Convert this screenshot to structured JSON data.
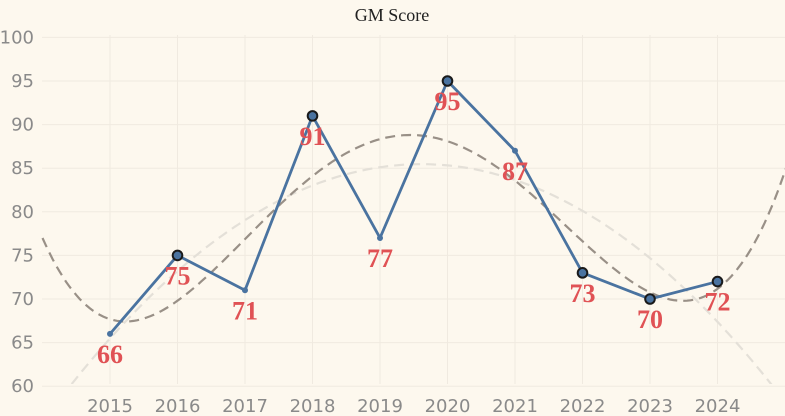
{
  "chart_data": {
    "type": "line",
    "title": "GM Score",
    "xlabel": "",
    "ylabel": "",
    "x": [
      "2015",
      "2016",
      "2017",
      "2018",
      "2019",
      "2020",
      "2021",
      "2022",
      "2023",
      "2024"
    ],
    "series": [
      {
        "values": [
          66,
          75,
          71,
          91,
          77,
          95,
          87,
          73,
          70,
          72
        ],
        "data_labels": [
          "66",
          "75",
          "71",
          "91",
          "77",
          "95",
          "87",
          "73",
          "70",
          "72"
        ],
        "highlighted": [
          false,
          true,
          false,
          true,
          false,
          true,
          false,
          true,
          true,
          true
        ],
        "color": "#4a73a0"
      }
    ],
    "trendlines": [
      {
        "style": "dashed",
        "color": "#999087",
        "description": "polynomial fit"
      },
      {
        "style": "dashed",
        "color": "#e4e0d8",
        "description": "quadratic fit"
      }
    ],
    "ylim": [
      58,
      101
    ],
    "yticks": [
      60,
      65,
      70,
      75,
      80,
      85,
      90,
      95,
      100
    ],
    "grid": true,
    "label_color": "#e05255",
    "background": "#fdf8ee"
  }
}
